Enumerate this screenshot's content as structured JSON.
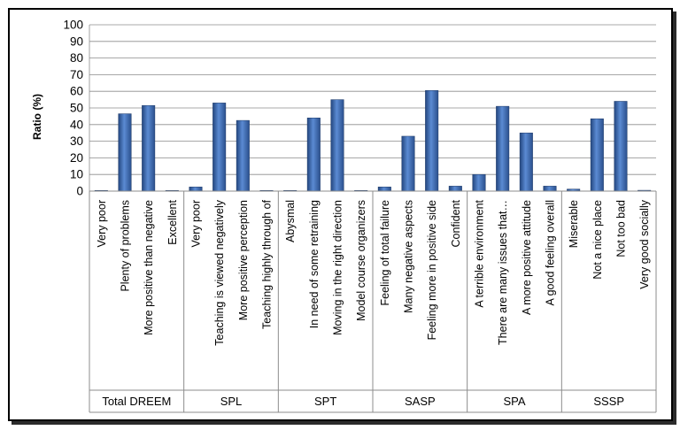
{
  "chart_data": {
    "type": "bar",
    "title": "",
    "xlabel": "",
    "ylabel": "Ratio (%)",
    "ylim": [
      0,
      100
    ],
    "yticks": [
      0,
      10,
      20,
      30,
      40,
      50,
      60,
      70,
      80,
      90,
      100
    ],
    "grid": true,
    "legend": "none",
    "bar_color": "#3f6db4",
    "groups": [
      {
        "name": "Total DREEM",
        "categories": [
          "Very poor",
          "Plenty of problems",
          "More positive than negative",
          "Excellent"
        ],
        "values": [
          0.3,
          46.5,
          51.5,
          0
        ]
      },
      {
        "name": "SPL",
        "categories": [
          "Very poor",
          "Teaching is viewed negatively",
          "More positive perception",
          "Teaching highly through of"
        ],
        "values": [
          2.5,
          53,
          42.5,
          0.3
        ]
      },
      {
        "name": "SPT",
        "categories": [
          "Abysmal",
          "In need of some retraining",
          "Moving in the right direction",
          "Model course organizers"
        ],
        "values": [
          0,
          44,
          55,
          0
        ]
      },
      {
        "name": "SASP",
        "categories": [
          "Feeling of total failure",
          "Many negative aspects",
          "Feeling more in positive side",
          "Confident"
        ],
        "values": [
          2.5,
          33,
          60.5,
          3
        ]
      },
      {
        "name": "SPA",
        "categories": [
          "A terrible environment",
          "There are many issues that…",
          "A more positive attitude",
          "A good feeling overall"
        ],
        "values": [
          10,
          51,
          35,
          3
        ]
      },
      {
        "name": "SSSP",
        "categories": [
          "Miserable",
          "Not a nice place",
          "Not too bad",
          "Very good socially"
        ],
        "values": [
          1.2,
          43.5,
          54,
          0.5
        ]
      }
    ]
  }
}
